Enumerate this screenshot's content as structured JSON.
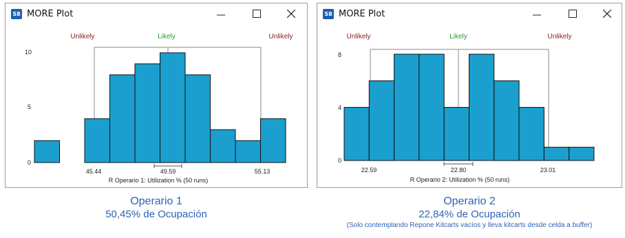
{
  "windows": [
    {
      "title": "MORE Plot",
      "icon_text": "S8",
      "controls": [
        "minimize-icon",
        "maximize-icon",
        "close-icon"
      ]
    },
    {
      "title": "MORE Plot",
      "icon_text": "S8",
      "controls": [
        "minimize-icon",
        "maximize-icon",
        "close-icon"
      ]
    }
  ],
  "captions": [
    {
      "title": "Operario 1",
      "subtitle": "50,45% de Ocupación",
      "note": ""
    },
    {
      "title": "Operario 2",
      "subtitle": "22,84% de Ocupación",
      "note": "(Solo contemplando Repone Kitcarts vacíos y lleva kitcarts desde celda a buffer)"
    }
  ],
  "colors": {
    "bar": "#1a9fce",
    "unlikely": "#8b1a1a",
    "likely": "#2a9a2a",
    "caption": "#2e64b4"
  },
  "chart_data": [
    {
      "type": "bar",
      "title": "",
      "xlabel": "R Operario 1: Utilization % (50 runs)",
      "ylabel": "",
      "ylim": [
        0,
        10
      ],
      "yticks": [
        "0",
        "5",
        "10"
      ],
      "values": [
        2,
        0,
        4,
        8,
        9,
        10,
        8,
        3,
        2,
        4
      ],
      "zones": {
        "left": "Unlikely",
        "middle": "Likely",
        "right": "Unlikely"
      },
      "markers": {
        "low": "45.44",
        "mean": "49.59",
        "high": "55.13"
      }
    },
    {
      "type": "bar",
      "title": "",
      "xlabel": "R Operario 2: Utilization % (50 runs)",
      "ylabel": "",
      "ylim": [
        0,
        8
      ],
      "yticks": [
        "0",
        "4",
        "8"
      ],
      "values": [
        4,
        6,
        8,
        8,
        4,
        8,
        6,
        4,
        1,
        1
      ],
      "zones": {
        "left": "Unlikely",
        "middle": "Likely",
        "right": "Unlikely"
      },
      "markers": {
        "low": "22.59",
        "mean": "22.80",
        "high": "23.01"
      }
    }
  ]
}
